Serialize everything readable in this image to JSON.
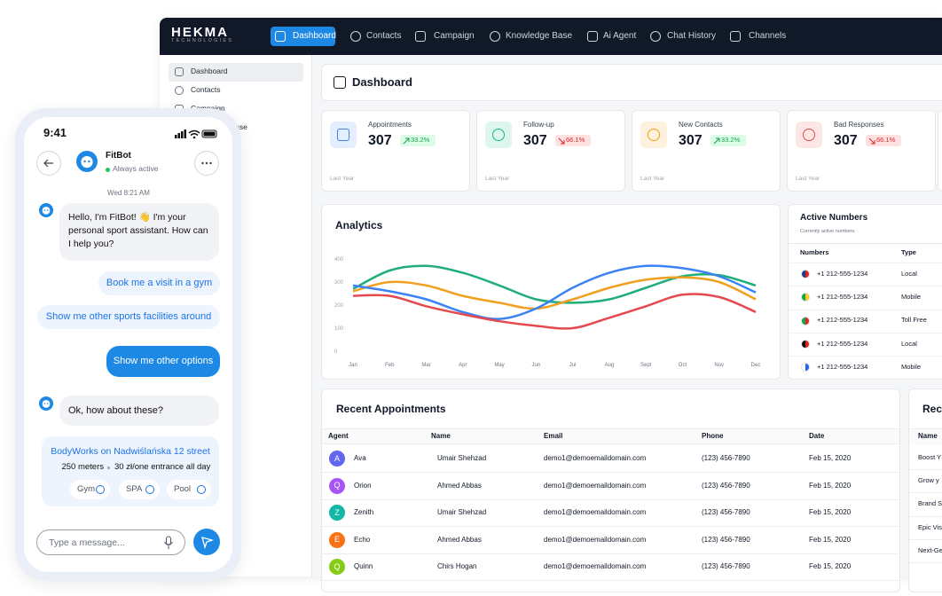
{
  "phone": {
    "time": "9:41",
    "bot_name": "FitBot",
    "status": "Always active",
    "timestamp": "Wed 8:21 AM",
    "bot_message_1": "Hello, I'm FitBot! 👋 I'm your personal sport assistant. How can I help you?",
    "quick_replies": [
      "Book me a visit in a gym",
      "Show me other sports facilities around"
    ],
    "user_message": "Show me other options",
    "bot_message_2": "Ok, how about these?",
    "card": {
      "title": "BodyWorks on Nadwiślańska 12 street",
      "distance": "250 meters",
      "price": "30 zł/one entrance all day",
      "tags": [
        "Gym",
        "SPA",
        "Pool"
      ]
    },
    "input_placeholder": "Type a message..."
  },
  "dashboard": {
    "logo": "HEKMA",
    "logo_sub": "TECHNOLOGIES",
    "nav": [
      "Dashboard",
      "Contacts",
      "Campaign",
      "Knowledge Base",
      "Ai Agent",
      "Chat History",
      "Channels"
    ],
    "sidebar": [
      "Dashboard",
      "Contacts",
      "Campaign",
      "Knowledge Base"
    ],
    "page_title": "Dashboard",
    "stats": [
      {
        "label": "Appointments",
        "value": 307,
        "change": "33.2%",
        "trend": "up",
        "period": "Last Year",
        "color": "#3b82f6"
      },
      {
        "label": "Follow-up",
        "value": 307,
        "change": "66.1%",
        "trend": "down",
        "period": "Last Year",
        "color": "#10b981"
      },
      {
        "label": "New Contacts",
        "value": 307,
        "change": "33.2%",
        "trend": "up",
        "period": "Last Year",
        "color": "#f59e0b"
      },
      {
        "label": "Bad Responses",
        "value": 307,
        "change": "66.1%",
        "trend": "down",
        "period": "Last Year",
        "color": "#ef4444"
      }
    ],
    "analytics": {
      "type": "line",
      "title": "Analytics",
      "categories": [
        "Jan",
        "Feb",
        "Mar",
        "Apr",
        "May",
        "Jun",
        "Jul",
        "Aug",
        "Sept",
        "Oct",
        "Nov",
        "Dec"
      ],
      "ylim": [
        0,
        400
      ],
      "yticks": [
        0,
        100,
        200,
        300,
        400
      ],
      "grid": false,
      "series": [
        {
          "color": "#1fae7a",
          "values": [
            270,
            350,
            370,
            340,
            285,
            225,
            210,
            225,
            275,
            325,
            330,
            285
          ]
        },
        {
          "color": "#f0a01e",
          "values": [
            260,
            300,
            285,
            240,
            210,
            185,
            225,
            275,
            310,
            320,
            300,
            225
          ]
        },
        {
          "color": "#3b82f6",
          "values": [
            285,
            260,
            225,
            170,
            140,
            185,
            275,
            340,
            370,
            360,
            325,
            255
          ]
        },
        {
          "color": "#e5484d",
          "values": [
            240,
            240,
            195,
            160,
            130,
            110,
            100,
            145,
            195,
            245,
            235,
            170
          ]
        }
      ]
    },
    "active_numbers": {
      "title": "Active Numbers",
      "subtitle": "Currently active numbers.",
      "columns": [
        "Numbers",
        "Type"
      ],
      "rows": [
        [
          "+1 212-555-1234",
          "Local"
        ],
        [
          "+1 212-555-1234",
          "Mobile"
        ],
        [
          "+1 212-555-1234",
          "Toll Free"
        ],
        [
          "+1 212-555-1234",
          "Local"
        ],
        [
          "+1 212-555-1234",
          "Mobile"
        ]
      ]
    },
    "recent_appointments": {
      "title": "Recent Appointments",
      "columns": [
        "Agent",
        "Name",
        "Email",
        "Phone",
        "Date"
      ],
      "rows": [
        {
          "initial": "A",
          "color": "#6366f1",
          "cells": [
            "Ava",
            "Umair Shehzad",
            "demo1@demoemaildomain.com",
            "(123) 456-7890",
            "Feb 15, 2020"
          ]
        },
        {
          "initial": "Q",
          "color": "#a855f7",
          "cells": [
            "Orion",
            "Ahmed Abbas",
            "demo1@demoemaildomain.com",
            "(123) 456-7890",
            "Feb 15, 2020"
          ]
        },
        {
          "initial": "Z",
          "color": "#14b8a6",
          "cells": [
            "Zenith",
            "Umair Shehzad",
            "demo1@demoemaildomain.com",
            "(123) 456-7890",
            "Feb 15, 2020"
          ]
        },
        {
          "initial": "E",
          "color": "#f97316",
          "cells": [
            "Echo",
            "Ahmed Abbas",
            "demo1@demoemaildomain.com",
            "(123) 456-7890",
            "Feb 15, 2020"
          ]
        },
        {
          "initial": "Q",
          "color": "#84cc16",
          "cells": [
            "Quinn",
            "Chirs Hogan",
            "demo1@demoemaildomain.com",
            "(123) 456-7890",
            "Feb 15, 2020"
          ]
        }
      ]
    },
    "recent_partial": {
      "title": "Rece",
      "column": "Name",
      "rows": [
        "Boost Y",
        "Grow y",
        "Brand S",
        "Epic Vis",
        "Next-Ge"
      ]
    }
  }
}
